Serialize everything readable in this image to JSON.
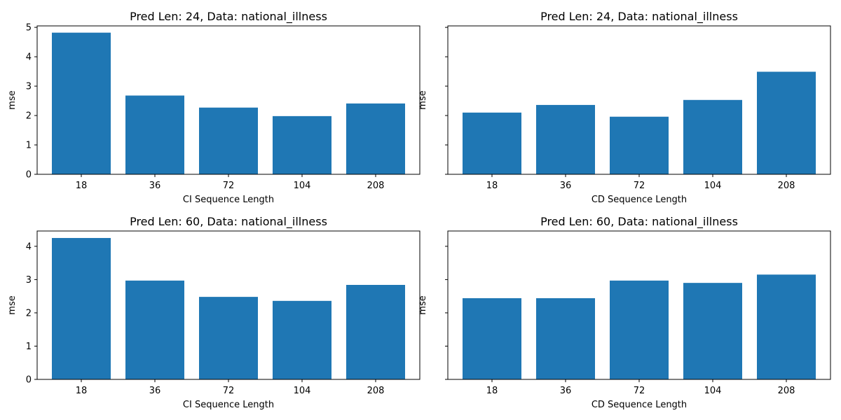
{
  "chart_data": [
    {
      "type": "bar",
      "title": "Pred Len: 24, Data: national_illness",
      "xlabel": "CI Sequence Length",
      "ylabel": "mse",
      "categories": [
        "18",
        "36",
        "72",
        "104",
        "208"
      ],
      "values": [
        4.82,
        2.68,
        2.27,
        1.98,
        2.41
      ],
      "ylim": [
        0,
        5.05
      ],
      "yticks": [
        0,
        1,
        2,
        3,
        4,
        5
      ],
      "show_ytick_labels": true,
      "grid": false,
      "bar_color": "#1f77b4"
    },
    {
      "type": "bar",
      "title": "Pred Len: 24, Data: national_illness",
      "xlabel": "CD Sequence Length",
      "ylabel": "mse",
      "categories": [
        "18",
        "36",
        "72",
        "104",
        "208"
      ],
      "values": [
        2.1,
        2.36,
        1.96,
        2.53,
        3.49
      ],
      "ylim": [
        0,
        5.05
      ],
      "yticks": [
        0,
        1,
        2,
        3,
        4,
        5
      ],
      "show_ytick_labels": false,
      "grid": false,
      "bar_color": "#1f77b4"
    },
    {
      "type": "bar",
      "title": "Pred Len: 60, Data: national_illness",
      "xlabel": "CI Sequence Length",
      "ylabel": "mse",
      "categories": [
        "18",
        "36",
        "72",
        "104",
        "208"
      ],
      "values": [
        4.25,
        2.97,
        2.48,
        2.36,
        2.84
      ],
      "ylim": [
        0,
        4.46
      ],
      "yticks": [
        0,
        1,
        2,
        3,
        4
      ],
      "show_ytick_labels": true,
      "grid": false,
      "bar_color": "#1f77b4"
    },
    {
      "type": "bar",
      "title": "Pred Len: 60, Data: national_illness",
      "xlabel": "CD Sequence Length",
      "ylabel": "mse",
      "categories": [
        "18",
        "36",
        "72",
        "104",
        "208"
      ],
      "values": [
        2.44,
        2.44,
        2.97,
        2.9,
        3.15
      ],
      "ylim": [
        0,
        4.46
      ],
      "yticks": [
        0,
        1,
        2,
        3,
        4
      ],
      "show_ytick_labels": false,
      "grid": false,
      "bar_color": "#1f77b4"
    }
  ]
}
